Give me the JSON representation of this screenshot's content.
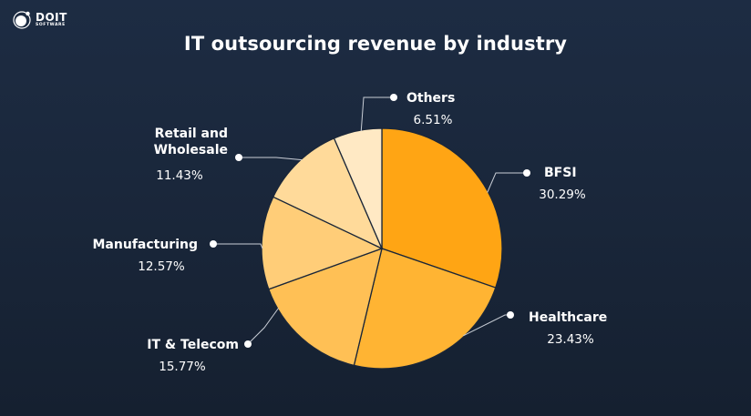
{
  "brand": {
    "name": "DOIT",
    "sub": "SOFTWARE"
  },
  "chart_data": {
    "type": "pie",
    "title": "IT outsourcing revenue by industry",
    "unit": "%",
    "start_angle_deg": 0,
    "direction": "clockwise",
    "slices": [
      {
        "label": "BFSI",
        "label_lines": [
          "BFSI"
        ],
        "value": 30.29,
        "display": "30.29%",
        "color": "#FFA514"
      },
      {
        "label": "Healthcare",
        "label_lines": [
          "Healthcare"
        ],
        "value": 23.43,
        "display": "23.43%",
        "color": "#FFB433"
      },
      {
        "label": "IT & Telecom",
        "label_lines": [
          "IT & Telecom"
        ],
        "value": 15.77,
        "display": "15.77%",
        "color": "#FFC055"
      },
      {
        "label": "Manufacturing",
        "label_lines": [
          "Manufacturing"
        ],
        "value": 12.57,
        "display": "12.57%",
        "color": "#FFCD78"
      },
      {
        "label": "Retail and Wholesale",
        "label_lines": [
          "Retail and",
          "Wholesale"
        ],
        "value": 11.43,
        "display": "11.43%",
        "color": "#FFDA9A"
      },
      {
        "label": "Others",
        "label_lines": [
          "Others"
        ],
        "value": 6.51,
        "display": "6.51%",
        "color": "#FFE9C4"
      }
    ],
    "legend": "callouts"
  }
}
